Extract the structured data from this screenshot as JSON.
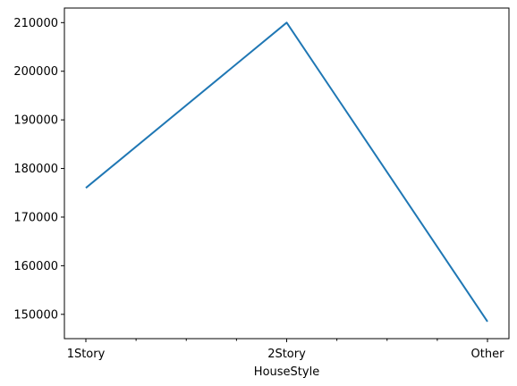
{
  "chart_data": {
    "type": "line",
    "title": "",
    "xlabel": "HouseStyle",
    "ylabel": "",
    "categories": [
      "1Story",
      "2Story",
      "Other"
    ],
    "values": [
      176000,
      210000,
      148500
    ],
    "ylim": [
      145000,
      213000
    ],
    "yticks": [
      150000,
      160000,
      170000,
      180000,
      190000,
      200000,
      210000
    ],
    "ytick_labels": [
      "150000",
      "160000",
      "170000",
      "180000",
      "190000",
      "200000",
      "210000"
    ],
    "xtick_labels": [
      "1Story",
      "2Story",
      "Other"
    ],
    "grid": false,
    "legend": "none",
    "line_color": "#1f77b4"
  }
}
